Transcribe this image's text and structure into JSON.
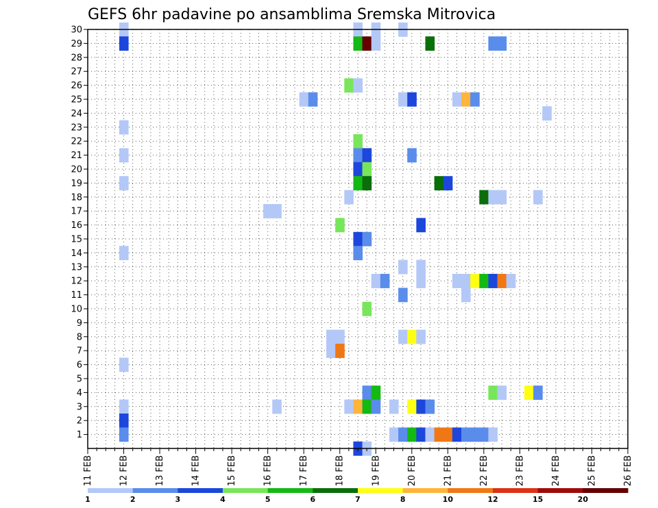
{
  "chart_data": {
    "type": "heatmap",
    "title": "GEFS 6hr padavine po ansamblima Sremska Mitrovica",
    "x_tick_labels": [
      "11 FEB",
      "12 FEB",
      "13 FEB",
      "14 FEB",
      "15 FEB",
      "16 FEB",
      "17 FEB",
      "18 FEB",
      "19 FEB",
      "20 FEB",
      "21 FEB",
      "22 FEB",
      "23 FEB",
      "24 FEB",
      "25 FEB",
      "26 FEB"
    ],
    "xlim": [
      0,
      60
    ],
    "y_tick_labels": [
      "1",
      "2",
      "3",
      "4",
      "5",
      "6",
      "7",
      "8",
      "9",
      "10",
      "11",
      "12",
      "13",
      "14",
      "15",
      "16",
      "17",
      "18",
      "19",
      "20",
      "21",
      "22",
      "23",
      "24",
      "25",
      "26",
      "27",
      "28",
      "29",
      "30"
    ],
    "ylim": [
      0,
      30
    ],
    "grid": true,
    "color_scale": {
      "colors": [
        "#b4c8f8",
        "#5a8ceb",
        "#1c46dc",
        "#78e65a",
        "#14b914",
        "#0a6e0a",
        "#ffff14",
        "#ffb43c",
        "#f07814",
        "#dc3214",
        "#a00a0a",
        "#640000"
      ],
      "labels": [
        "1",
        "2",
        "3",
        "4",
        "5",
        "6",
        "7",
        "8",
        "10",
        "12",
        "15",
        "20"
      ]
    },
    "cells_format": "[time_step, member, class]",
    "cells": [
      [
        4,
        30,
        0
      ],
      [
        4,
        29,
        2
      ],
      [
        4,
        23,
        0
      ],
      [
        4,
        21,
        0
      ],
      [
        4,
        19,
        0
      ],
      [
        4,
        14,
        0
      ],
      [
        4,
        6,
        0
      ],
      [
        4,
        3,
        0
      ],
      [
        4,
        2,
        2
      ],
      [
        4,
        1,
        1
      ],
      [
        20,
        17,
        0
      ],
      [
        21,
        17,
        0
      ],
      [
        21,
        3,
        0
      ],
      [
        24,
        25,
        0
      ],
      [
        25,
        25,
        1
      ],
      [
        27,
        8,
        0
      ],
      [
        28,
        8,
        0
      ],
      [
        27,
        7,
        0
      ],
      [
        28,
        7,
        8
      ],
      [
        28,
        16,
        3
      ],
      [
        29,
        26,
        3
      ],
      [
        29,
        18,
        0
      ],
      [
        29,
        3,
        0
      ],
      [
        30,
        30,
        0
      ],
      [
        30,
        29,
        4
      ],
      [
        30,
        26,
        0
      ],
      [
        30,
        22,
        3
      ],
      [
        30,
        21,
        1
      ],
      [
        30,
        20,
        2
      ],
      [
        30,
        19,
        4
      ],
      [
        30,
        15,
        2
      ],
      [
        30,
        14,
        1
      ],
      [
        30,
        3,
        7
      ],
      [
        30,
        0,
        2
      ],
      [
        31,
        29,
        11
      ],
      [
        31,
        21,
        2
      ],
      [
        31,
        20,
        3
      ],
      [
        31,
        19,
        5
      ],
      [
        31,
        15,
        1
      ],
      [
        31,
        10,
        3
      ],
      [
        31,
        4,
        1
      ],
      [
        31,
        3,
        4
      ],
      [
        31,
        0,
        0
      ],
      [
        32,
        30,
        0
      ],
      [
        32,
        29,
        0
      ],
      [
        32,
        12,
        0
      ],
      [
        32,
        4,
        4
      ],
      [
        32,
        3,
        1
      ],
      [
        33,
        12,
        1
      ],
      [
        34,
        3,
        0
      ],
      [
        34,
        1,
        0
      ],
      [
        35,
        30,
        0
      ],
      [
        35,
        25,
        0
      ],
      [
        35,
        13,
        0
      ],
      [
        35,
        11,
        1
      ],
      [
        35,
        8,
        0
      ],
      [
        35,
        1,
        1
      ],
      [
        36,
        25,
        2
      ],
      [
        36,
        21,
        1
      ],
      [
        36,
        8,
        6
      ],
      [
        36,
        3,
        6
      ],
      [
        36,
        1,
        4
      ],
      [
        37,
        16,
        2
      ],
      [
        37,
        13,
        0
      ],
      [
        37,
        12,
        0
      ],
      [
        37,
        8,
        0
      ],
      [
        37,
        3,
        2
      ],
      [
        37,
        1,
        2
      ],
      [
        38,
        29,
        5
      ],
      [
        38,
        3,
        1
      ],
      [
        38,
        1,
        0
      ],
      [
        39,
        19,
        5
      ],
      [
        39,
        1,
        8
      ],
      [
        40,
        19,
        2
      ],
      [
        40,
        1,
        8
      ],
      [
        41,
        25,
        0
      ],
      [
        41,
        12,
        0
      ],
      [
        41,
        1,
        2
      ],
      [
        42,
        25,
        7
      ],
      [
        42,
        12,
        0
      ],
      [
        42,
        11,
        0
      ],
      [
        42,
        1,
        1
      ],
      [
        43,
        25,
        1
      ],
      [
        43,
        12,
        6
      ],
      [
        43,
        1,
        1
      ],
      [
        44,
        18,
        5
      ],
      [
        44,
        12,
        4
      ],
      [
        44,
        1,
        1
      ],
      [
        45,
        29,
        1
      ],
      [
        45,
        18,
        0
      ],
      [
        45,
        12,
        2
      ],
      [
        45,
        4,
        3
      ],
      [
        45,
        1,
        0
      ],
      [
        46,
        29,
        1
      ],
      [
        46,
        18,
        0
      ],
      [
        46,
        12,
        8
      ],
      [
        46,
        4,
        0
      ],
      [
        47,
        12,
        0
      ],
      [
        49,
        4,
        6
      ],
      [
        50,
        18,
        0
      ],
      [
        50,
        4,
        1
      ],
      [
        51,
        24,
        0
      ]
    ]
  }
}
